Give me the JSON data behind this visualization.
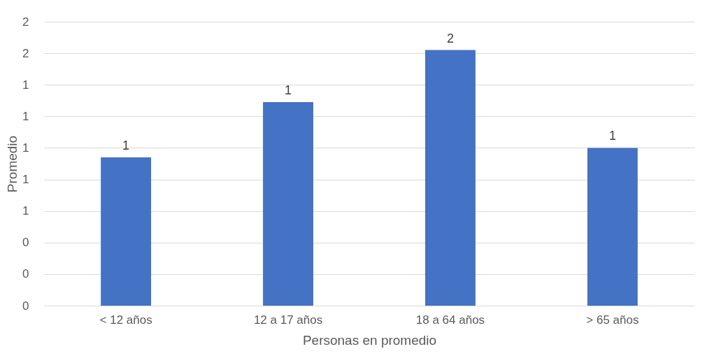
{
  "chart_data": {
    "type": "bar",
    "xlabel": "Personas en promedio",
    "ylabel": "Promedio",
    "categories": [
      "< 12 años",
      "12 a 17 años",
      "18 a 64 años",
      "> 65 años"
    ],
    "values": [
      0.94,
      1.29,
      1.62,
      1.0
    ],
    "color": "#4472c4",
    "value_labels": [
      "1",
      "1",
      "2",
      "1"
    ],
    "ylim": [
      0,
      1.8
    ],
    "yticks": [
      {
        "value": 0,
        "label": "0"
      },
      {
        "value": 0.2,
        "label": "0"
      },
      {
        "value": 0.4,
        "label": "0"
      },
      {
        "value": 0.6,
        "label": "1"
      },
      {
        "value": 0.8,
        "label": "1"
      },
      {
        "value": 1.0,
        "label": "1"
      },
      {
        "value": 1.2,
        "label": "1"
      },
      {
        "value": 1.4,
        "label": "1"
      },
      {
        "value": 1.6,
        "label": "2"
      },
      {
        "value": 1.8,
        "label": "2"
      }
    ],
    "grid": "y"
  }
}
